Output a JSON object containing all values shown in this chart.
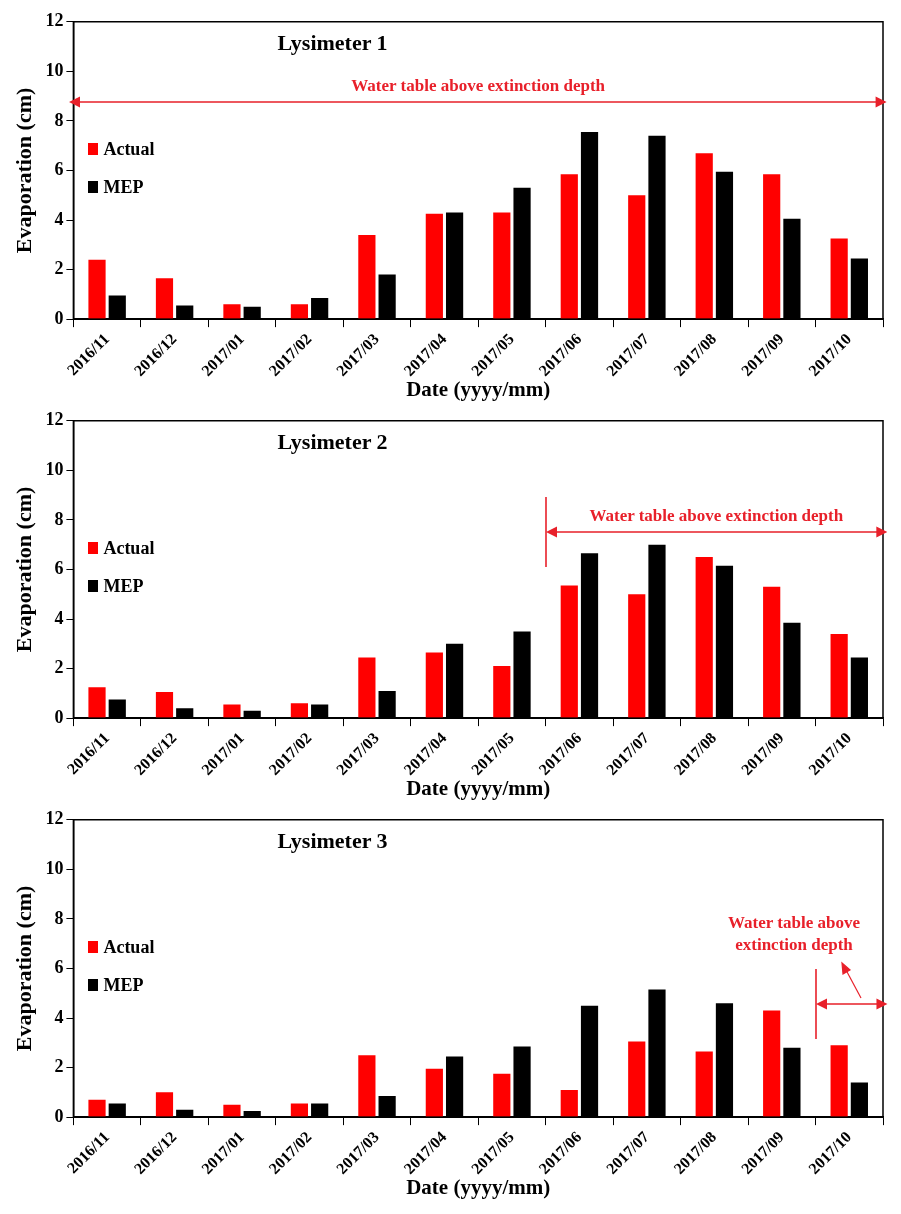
{
  "chart_data": [
    {
      "type": "bar",
      "title": "Lysimeter 1",
      "xlabel": "Date (yyyy/mm)",
      "ylabel": "Evaporation (cm)",
      "categories": [
        "2016/11",
        "2016/12",
        "2017/01",
        "2017/02",
        "2017/03",
        "2017/04",
        "2017/05",
        "2017/06",
        "2017/07",
        "2017/08",
        "2017/09",
        "2017/10"
      ],
      "series": [
        {
          "name": "Actual",
          "color": "#ff0000",
          "values": [
            2.4,
            1.65,
            0.6,
            0.6,
            3.4,
            4.25,
            4.3,
            5.85,
            5.0,
            6.7,
            5.85,
            3.25
          ]
        },
        {
          "name": "MEP",
          "color": "#000000",
          "values": [
            0.95,
            0.55,
            0.5,
            0.85,
            1.8,
            4.3,
            5.3,
            7.55,
            7.4,
            5.95,
            4.05,
            2.45
          ]
        }
      ],
      "ylim": [
        0,
        12
      ],
      "yticks": [
        0,
        2,
        4,
        6,
        8,
        10,
        12
      ],
      "grid": false,
      "legend": "left",
      "annotations": [
        "Water table above extinction depth"
      ]
    },
    {
      "type": "bar",
      "title": "Lysimeter 2",
      "xlabel": "Date (yyyy/mm)",
      "ylabel": "Evaporation (cm)",
      "categories": [
        "2016/11",
        "2016/12",
        "2017/01",
        "2017/02",
        "2017/03",
        "2017/04",
        "2017/05",
        "2017/06",
        "2017/07",
        "2017/08",
        "2017/09",
        "2017/10"
      ],
      "series": [
        {
          "name": "Actual",
          "color": "#ff0000",
          "values": [
            1.25,
            1.05,
            0.55,
            0.6,
            2.45,
            2.65,
            2.1,
            5.35,
            5.0,
            6.5,
            5.3,
            3.4
          ]
        },
        {
          "name": "MEP",
          "color": "#000000",
          "values": [
            0.75,
            0.4,
            0.3,
            0.55,
            1.1,
            3.0,
            3.5,
            6.65,
            7.0,
            6.15,
            3.85,
            2.45
          ]
        }
      ],
      "ylim": [
        0,
        12
      ],
      "yticks": [
        0,
        2,
        4,
        6,
        8,
        10,
        12
      ],
      "grid": false,
      "legend": "left",
      "annotations": [
        "Water table above extinction depth"
      ]
    },
    {
      "type": "bar",
      "title": "Lysimeter 3",
      "xlabel": "Date (yyyy/mm)",
      "ylabel": "Evaporation (cm)",
      "categories": [
        "2016/11",
        "2016/12",
        "2017/01",
        "2017/02",
        "2017/03",
        "2017/04",
        "2017/05",
        "2017/06",
        "2017/07",
        "2017/08",
        "2017/09",
        "2017/10"
      ],
      "series": [
        {
          "name": "Actual",
          "color": "#ff0000",
          "values": [
            0.7,
            1.0,
            0.5,
            0.55,
            2.5,
            1.95,
            1.75,
            1.1,
            3.05,
            2.65,
            4.3,
            2.9
          ]
        },
        {
          "name": "MEP",
          "color": "#000000",
          "values": [
            0.55,
            0.3,
            0.25,
            0.55,
            0.85,
            2.45,
            2.85,
            4.5,
            5.15,
            4.6,
            2.8,
            1.4
          ]
        }
      ],
      "ylim": [
        0,
        12
      ],
      "yticks": [
        0,
        2,
        4,
        6,
        8,
        10,
        12
      ],
      "grid": false,
      "legend": "left",
      "annotations": [
        "Water table above extinction depth"
      ]
    }
  ]
}
